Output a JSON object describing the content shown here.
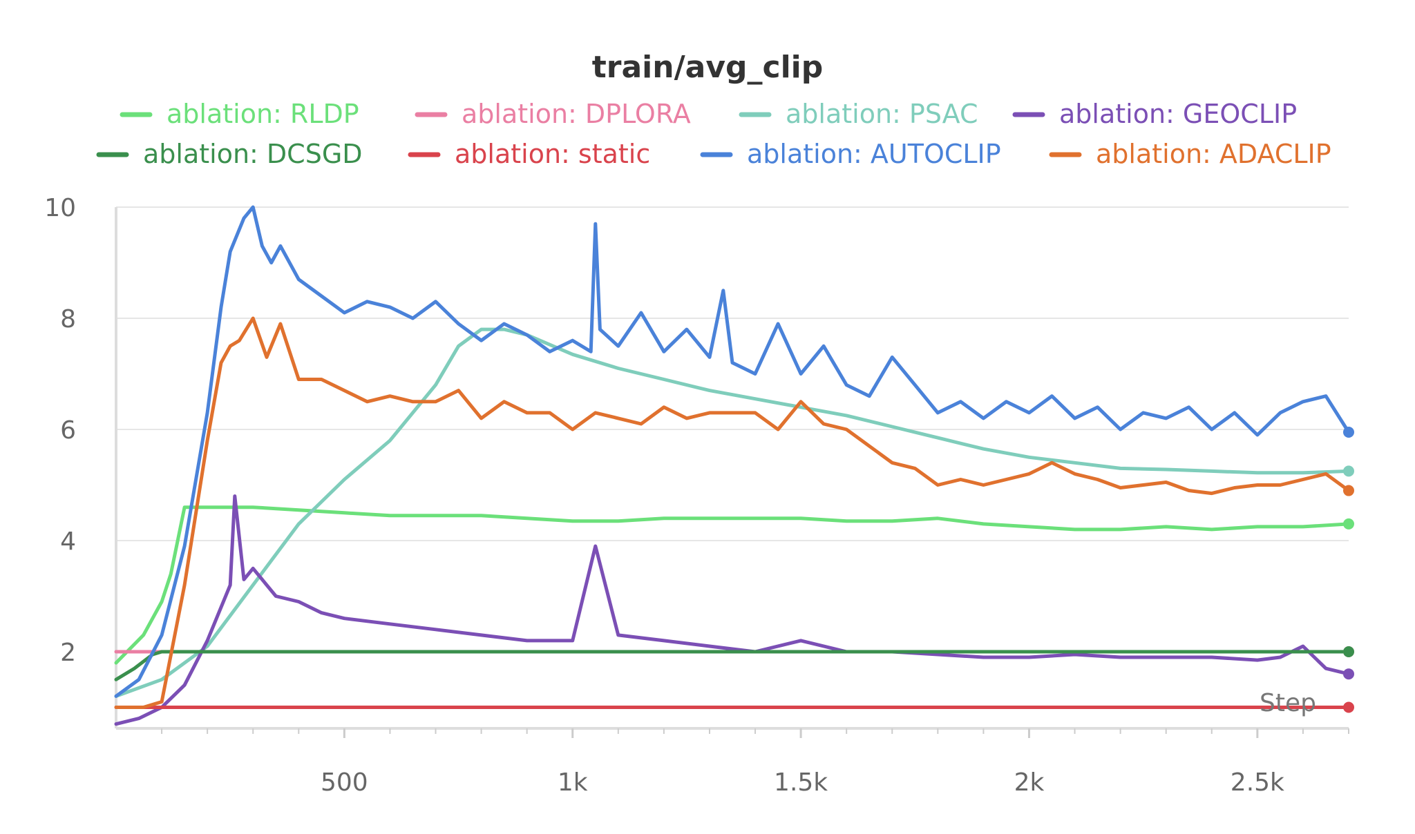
{
  "chart_data": {
    "type": "line",
    "title": "train/avg_clip",
    "xlabel": "Step",
    "ylabel": "",
    "xlim": [
      0,
      2700
    ],
    "ylim": [
      0.6,
      10
    ],
    "x_ticks": [
      {
        "value": 500,
        "label": "500"
      },
      {
        "value": 1000,
        "label": "1k"
      },
      {
        "value": 1500,
        "label": "1.5k"
      },
      {
        "value": 2000,
        "label": "2k"
      },
      {
        "value": 2500,
        "label": "2.5k"
      }
    ],
    "y_ticks": [
      {
        "value": 2,
        "label": "2"
      },
      {
        "value": 4,
        "label": "4"
      },
      {
        "value": 6,
        "label": "6"
      },
      {
        "value": 8,
        "label": "8"
      },
      {
        "value": 10,
        "label": "10"
      }
    ],
    "grid": true,
    "legend_position": "top",
    "series": [
      {
        "name": "ablation: RLDP",
        "color": "#6be07a",
        "x": [
          0,
          60,
          100,
          120,
          150,
          200,
          300,
          400,
          500,
          600,
          700,
          800,
          900,
          1000,
          1100,
          1200,
          1300,
          1400,
          1500,
          1600,
          1700,
          1800,
          1900,
          2000,
          2100,
          2200,
          2300,
          2400,
          2500,
          2600,
          2700
        ],
        "y": [
          1.8,
          2.3,
          2.9,
          3.4,
          4.6,
          4.6,
          4.6,
          4.55,
          4.5,
          4.45,
          4.45,
          4.45,
          4.4,
          4.35,
          4.35,
          4.4,
          4.4,
          4.4,
          4.4,
          4.35,
          4.35,
          4.4,
          4.3,
          4.25,
          4.2,
          4.2,
          4.25,
          4.2,
          4.25,
          4.25,
          4.3
        ]
      },
      {
        "name": "ablation: DPLORA",
        "color": "#ea7fa3",
        "x": [
          0,
          2700
        ],
        "y": [
          2.0,
          2.0
        ]
      },
      {
        "name": "ablation: PSAC",
        "color": "#7fcdbb",
        "x": [
          0,
          100,
          200,
          300,
          400,
          500,
          600,
          700,
          750,
          800,
          850,
          900,
          1000,
          1100,
          1200,
          1300,
          1400,
          1500,
          1600,
          1700,
          1800,
          1900,
          2000,
          2100,
          2200,
          2300,
          2400,
          2500,
          2600,
          2700
        ],
        "y": [
          1.2,
          1.5,
          2.1,
          3.2,
          4.3,
          5.1,
          5.8,
          6.8,
          7.5,
          7.8,
          7.8,
          7.7,
          7.35,
          7.1,
          6.9,
          6.7,
          6.55,
          6.4,
          6.25,
          6.05,
          5.85,
          5.65,
          5.5,
          5.4,
          5.3,
          5.28,
          5.25,
          5.22,
          5.22,
          5.25
        ]
      },
      {
        "name": "ablation: GEOCLIP",
        "color": "#7b4fb5",
        "x": [
          0,
          50,
          100,
          150,
          200,
          250,
          260,
          280,
          300,
          350,
          400,
          450,
          500,
          600,
          700,
          800,
          900,
          1000,
          1050,
          1100,
          1200,
          1300,
          1400,
          1500,
          1600,
          1700,
          1800,
          1900,
          2000,
          2100,
          2200,
          2300,
          2400,
          2500,
          2550,
          2600,
          2650,
          2700
        ],
        "y": [
          0.7,
          0.8,
          1.0,
          1.4,
          2.2,
          3.2,
          4.8,
          3.3,
          3.5,
          3.0,
          2.9,
          2.7,
          2.6,
          2.5,
          2.4,
          2.3,
          2.2,
          2.2,
          3.9,
          2.3,
          2.2,
          2.1,
          2.0,
          2.2,
          2.0,
          2.0,
          1.95,
          1.9,
          1.9,
          1.95,
          1.9,
          1.9,
          1.9,
          1.85,
          1.9,
          2.1,
          1.7,
          1.6
        ]
      },
      {
        "name": "ablation: DCSGD",
        "color": "#3a8f4d",
        "x": [
          0,
          40,
          80,
          100,
          2700
        ],
        "y": [
          1.5,
          1.7,
          1.95,
          2.0,
          2.0
        ]
      },
      {
        "name": "ablation: static",
        "color": "#d9434c",
        "x": [
          0,
          2700
        ],
        "y": [
          1.0,
          1.0
        ]
      },
      {
        "name": "ablation: AUTOCLIP",
        "color": "#4a82d9",
        "x": [
          0,
          50,
          100,
          150,
          200,
          230,
          250,
          280,
          300,
          320,
          340,
          360,
          400,
          450,
          500,
          550,
          600,
          650,
          700,
          750,
          800,
          850,
          900,
          950,
          1000,
          1040,
          1050,
          1060,
          1100,
          1150,
          1200,
          1250,
          1300,
          1330,
          1350,
          1400,
          1450,
          1500,
          1550,
          1600,
          1650,
          1700,
          1750,
          1800,
          1850,
          1900,
          1950,
          2000,
          2050,
          2100,
          2150,
          2200,
          2250,
          2300,
          2350,
          2400,
          2450,
          2500,
          2550,
          2600,
          2650,
          2700
        ],
        "y": [
          1.2,
          1.5,
          2.3,
          3.9,
          6.3,
          8.2,
          9.2,
          9.8,
          10.0,
          9.3,
          9.0,
          9.3,
          8.7,
          8.4,
          8.1,
          8.3,
          8.2,
          8.0,
          8.3,
          7.9,
          7.6,
          7.9,
          7.7,
          7.4,
          7.6,
          7.4,
          9.7,
          7.8,
          7.5,
          8.1,
          7.4,
          7.8,
          7.3,
          8.5,
          7.2,
          7.0,
          7.9,
          7.0,
          7.5,
          6.8,
          6.6,
          7.3,
          6.8,
          6.3,
          6.5,
          6.2,
          6.5,
          6.3,
          6.6,
          6.2,
          6.4,
          6.0,
          6.3,
          6.2,
          6.4,
          6.0,
          6.3,
          5.9,
          6.3,
          6.5,
          6.6,
          5.95
        ]
      },
      {
        "name": "ablation: ADACLIP",
        "color": "#e0712e",
        "x": [
          0,
          60,
          100,
          150,
          200,
          230,
          250,
          270,
          300,
          330,
          360,
          400,
          450,
          500,
          550,
          600,
          650,
          700,
          750,
          800,
          850,
          900,
          950,
          1000,
          1050,
          1100,
          1150,
          1200,
          1250,
          1300,
          1350,
          1400,
          1450,
          1500,
          1550,
          1600,
          1650,
          1700,
          1750,
          1800,
          1850,
          1900,
          1950,
          2000,
          2050,
          2100,
          2150,
          2200,
          2250,
          2300,
          2350,
          2400,
          2450,
          2500,
          2550,
          2600,
          2650,
          2700
        ],
        "y": [
          1.0,
          1.0,
          1.1,
          3.2,
          5.8,
          7.2,
          7.5,
          7.6,
          8.0,
          7.3,
          7.9,
          6.9,
          6.9,
          6.7,
          6.5,
          6.6,
          6.5,
          6.5,
          6.7,
          6.2,
          6.5,
          6.3,
          6.3,
          6.0,
          6.3,
          6.2,
          6.1,
          6.4,
          6.2,
          6.3,
          6.3,
          6.3,
          6.0,
          6.5,
          6.1,
          6.0,
          5.7,
          5.4,
          5.3,
          5.0,
          5.1,
          5.0,
          5.1,
          5.2,
          5.4,
          5.2,
          5.1,
          4.95,
          5.0,
          5.05,
          4.9,
          4.85,
          4.95,
          5.0,
          5.0,
          5.1,
          5.2,
          4.9
        ]
      }
    ]
  }
}
